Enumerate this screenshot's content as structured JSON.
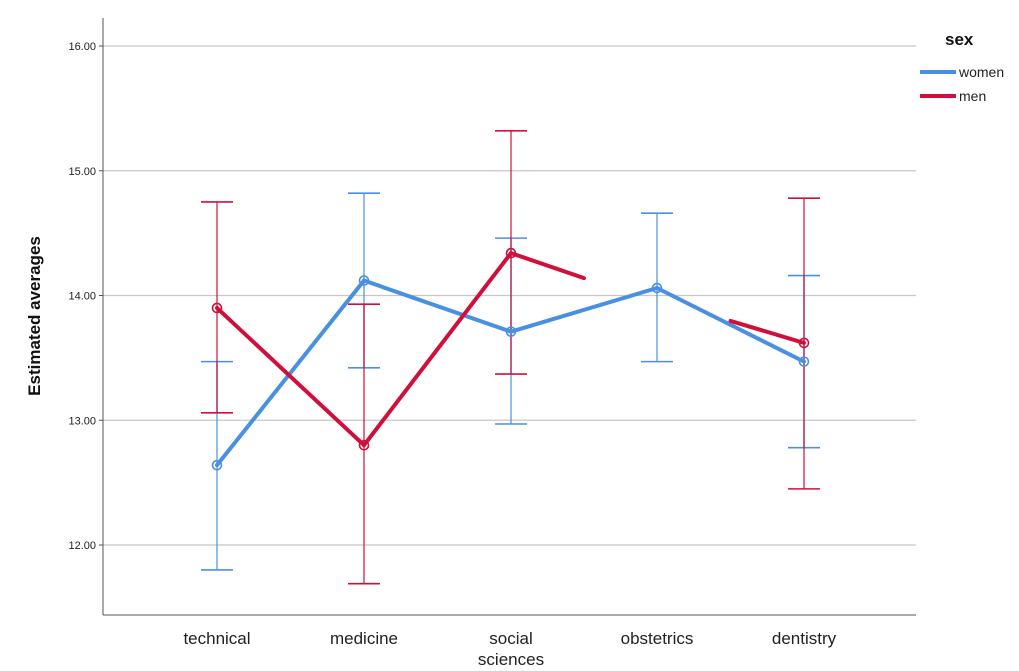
{
  "chart_data": {
    "type": "line",
    "ylabel": "Estimated averages",
    "xlabel": "",
    "categories": [
      "technical",
      "medicine",
      "social sciences",
      "obstetrics",
      "dentistry"
    ],
    "category_lines": [
      [
        "technical"
      ],
      [
        "medicine"
      ],
      [
        "social",
        "sciences"
      ],
      [
        "obstetrics"
      ],
      [
        "dentistry"
      ]
    ],
    "ylim": [
      11.5,
      16.25
    ],
    "yticks": [
      12,
      13,
      14,
      15,
      16
    ],
    "ytick_labels": [
      "12.00",
      "13.00",
      "14.00",
      "15.00",
      "16.00"
    ],
    "grid": true,
    "legend": {
      "title": "sex",
      "position": "top-right"
    },
    "series": [
      {
        "name": "women",
        "color": "#4a90e2",
        "values": [
          12.64,
          14.12,
          13.71,
          14.06,
          13.47
        ],
        "ci_low": [
          11.8,
          13.42,
          12.97,
          13.47,
          12.78
        ],
        "ci_high": [
          13.47,
          14.82,
          14.46,
          14.66,
          14.16
        ]
      },
      {
        "name": "men",
        "color": "#d0103a",
        "values": [
          13.9,
          12.8,
          14.34,
          null,
          13.62
        ],
        "ci_low": [
          13.06,
          11.69,
          13.37,
          null,
          12.45
        ],
        "ci_high": [
          14.75,
          13.93,
          15.32,
          null,
          14.78
        ]
      }
    ]
  }
}
